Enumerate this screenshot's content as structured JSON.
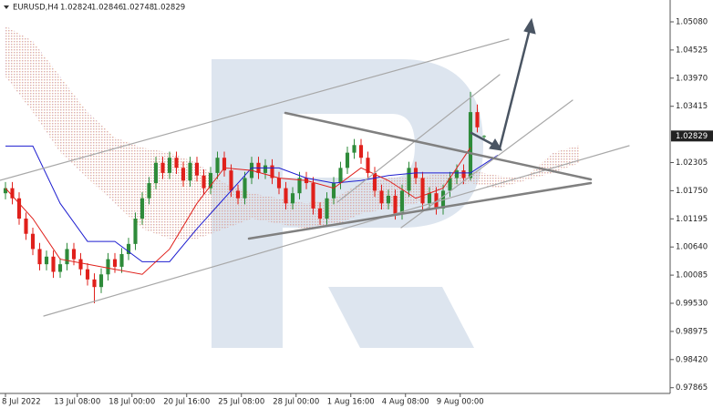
{
  "header": {
    "symbol": "EURUSD,H4"
  },
  "chart_data": {
    "type": "candlestick",
    "up_color": "#2e8b3a",
    "down_color": "#e0201b",
    "x": [
      0,
      2,
      4,
      6,
      8,
      10,
      12,
      14,
      16,
      18,
      20,
      22,
      24,
      26,
      28,
      30,
      32,
      34,
      36,
      38,
      40,
      42,
      44,
      46,
      48,
      50,
      52,
      54,
      56,
      58,
      60,
      62,
      64,
      66,
      68,
      70,
      72,
      74,
      76,
      78,
      80,
      82,
      84,
      86,
      88,
      90,
      92,
      94,
      96,
      98,
      100,
      102,
      104,
      106,
      108,
      110,
      112,
      114,
      116,
      118,
      120,
      122,
      124,
      126,
      128,
      130,
      132,
      134,
      136,
      138,
      140
    ],
    "candles": [
      [
        1.017,
        1.0192,
        1.0158,
        1.018
      ],
      [
        1.018,
        1.0192,
        1.0148,
        1.016
      ],
      [
        1.016,
        1.0172,
        1.0108,
        1.012
      ],
      [
        1.012,
        1.0132,
        1.0078,
        1.009
      ],
      [
        1.009,
        1.0102,
        1.0048,
        1.006
      ],
      [
        1.006,
        1.0072,
        1.0018,
        1.003
      ],
      [
        1.003,
        1.0057,
        1.0018,
        1.0045
      ],
      [
        1.0045,
        1.0057,
        1.0003,
        1.0015
      ],
      [
        1.0015,
        1.0042,
        1.0003,
        1.003
      ],
      [
        1.003,
        1.0072,
        1.0018,
        1.006
      ],
      [
        1.006,
        1.0072,
        1.0028,
        1.004
      ],
      [
        1.004,
        1.0052,
        1.0008,
        1.002
      ],
      [
        1.002,
        1.0032,
        0.9988,
        1.0
      ],
      [
        1.0,
        1.0012,
        0.9953,
        0.9985
      ],
      [
        0.9985,
        1.0022,
        0.9973,
        1.001
      ],
      [
        1.001,
        1.0052,
        0.9998,
        1.004
      ],
      [
        1.004,
        1.0052,
        1.0013,
        1.0025
      ],
      [
        1.0025,
        1.0062,
        1.0013,
        1.005
      ],
      [
        1.005,
        1.0082,
        1.0038,
        1.007
      ],
      [
        1.007,
        1.0132,
        1.0058,
        1.012
      ],
      [
        1.012,
        1.0172,
        1.0108,
        1.016
      ],
      [
        1.016,
        1.0202,
        1.0148,
        1.019
      ],
      [
        1.019,
        1.0242,
        1.0178,
        1.023
      ],
      [
        1.023,
        1.0242,
        1.0198,
        1.021
      ],
      [
        1.021,
        1.0252,
        1.0198,
        1.024
      ],
      [
        1.024,
        1.0252,
        1.0208,
        1.022
      ],
      [
        1.022,
        1.0232,
        1.0183,
        1.0195
      ],
      [
        1.0195,
        1.0242,
        1.0183,
        1.023
      ],
      [
        1.023,
        1.0242,
        1.0193,
        1.0205
      ],
      [
        1.0205,
        1.0217,
        1.0168,
        1.018
      ],
      [
        1.018,
        1.0222,
        1.0168,
        1.021
      ],
      [
        1.021,
        1.0252,
        1.0198,
        1.024
      ],
      [
        1.024,
        1.0252,
        1.0203,
        1.0215
      ],
      [
        1.0215,
        1.0227,
        1.0163,
        1.0175
      ],
      [
        1.0175,
        1.0187,
        1.0148,
        1.016
      ],
      [
        1.016,
        1.0212,
        1.0148,
        1.02
      ],
      [
        1.02,
        1.0242,
        1.0188,
        1.023
      ],
      [
        1.023,
        1.0242,
        1.0198,
        1.021
      ],
      [
        1.021,
        1.0237,
        1.0198,
        1.0225
      ],
      [
        1.0225,
        1.0237,
        1.0188,
        1.02
      ],
      [
        1.02,
        1.0212,
        1.0168,
        1.018
      ],
      [
        1.018,
        1.0192,
        1.0138,
        1.015
      ],
      [
        1.015,
        1.0182,
        1.0138,
        1.017
      ],
      [
        1.017,
        1.0212,
        1.0158,
        1.02
      ],
      [
        1.02,
        1.0212,
        1.0178,
        1.019
      ],
      [
        1.019,
        1.0202,
        1.0128,
        1.014
      ],
      [
        1.014,
        1.0152,
        1.0108,
        1.012
      ],
      [
        1.012,
        1.0172,
        1.0108,
        1.016
      ],
      [
        1.016,
        1.0202,
        1.0148,
        1.019
      ],
      [
        1.019,
        1.0232,
        1.0178,
        1.022
      ],
      [
        1.022,
        1.0262,
        1.0208,
        1.025
      ],
      [
        1.025,
        1.0277,
        1.0238,
        1.0265
      ],
      [
        1.0265,
        1.0277,
        1.0228,
        1.024
      ],
      [
        1.024,
        1.0252,
        1.0198,
        1.021
      ],
      [
        1.021,
        1.0222,
        1.0163,
        1.0175
      ],
      [
        1.0175,
        1.0187,
        1.0138,
        1.015
      ],
      [
        1.015,
        1.0177,
        1.0138,
        1.0165
      ],
      [
        1.0165,
        1.0177,
        1.0118,
        1.013
      ],
      [
        1.013,
        1.0187,
        1.0118,
        1.0175
      ],
      [
        1.0175,
        1.0232,
        1.0163,
        1.022
      ],
      [
        1.022,
        1.0232,
        1.0188,
        1.02
      ],
      [
        1.02,
        1.0212,
        1.0138,
        1.015
      ],
      [
        1.015,
        1.0182,
        1.0138,
        1.017
      ],
      [
        1.017,
        1.0182,
        1.0128,
        1.014
      ],
      [
        1.014,
        1.0187,
        1.0128,
        1.0175
      ],
      [
        1.0175,
        1.0212,
        1.0163,
        1.02
      ],
      [
        1.02,
        1.0227,
        1.0188,
        1.0215
      ],
      [
        1.0215,
        1.0227,
        1.0188,
        1.02
      ],
      [
        1.02,
        1.037,
        1.0195,
        1.033
      ],
      [
        1.033,
        1.0345,
        1.029,
        1.03
      ],
      [
        1.02824,
        1.02846,
        1.02748,
        1.02829
      ]
    ],
    "series": [
      {
        "color": "#1f1fd0",
        "x": [
          0,
          8,
          16,
          24,
          32,
          40,
          48,
          56,
          64,
          72,
          80,
          88,
          96,
          104,
          112,
          120,
          128,
          136,
          144
        ],
        "values": [
          1.0263,
          1.0263,
          1.015,
          1.0075,
          1.0075,
          1.0035,
          1.0035,
          1.01,
          1.016,
          1.022,
          1.022,
          1.02,
          1.019,
          1.0195,
          1.0205,
          1.021,
          1.021,
          1.021,
          1.0245
        ]
      },
      {
        "color": "#e0201b",
        "x": [
          0,
          8,
          16,
          24,
          32,
          40,
          48,
          56,
          64,
          72,
          80,
          88,
          96,
          104,
          112,
          120,
          128,
          136
        ],
        "values": [
          1.018,
          1.012,
          1.004,
          1.003,
          1.002,
          1.001,
          1.006,
          1.015,
          1.022,
          1.0215,
          1.02,
          1.0195,
          1.018,
          1.022,
          1.0195,
          1.016,
          1.018,
          1.026
        ]
      }
    ],
    "cloud": {
      "x": [
        0,
        8,
        16,
        24,
        32,
        40,
        48,
        56,
        64,
        72,
        80,
        88,
        96,
        104,
        112,
        120,
        128,
        136,
        144,
        152,
        160,
        168
      ],
      "upper": [
        1.05,
        1.047,
        1.04,
        1.033,
        1.028,
        1.026,
        1.025,
        1.023,
        1.019,
        1.017,
        1.016,
        1.015,
        1.016,
        1.019,
        1.02,
        1.02,
        1.021,
        1.0215,
        1.0205,
        1.02,
        1.025,
        1.0265
      ],
      "lower": [
        1.04,
        1.033,
        1.025,
        1.02,
        1.015,
        1.01,
        1.008,
        1.008,
        1.01,
        1.012,
        1.011,
        1.01,
        1.0105,
        1.013,
        1.014,
        1.015,
        1.018,
        1.019,
        1.018,
        1.0195,
        1.021,
        1.023
      ]
    },
    "xlim": [
      -1.6,
      194.4
    ],
    "ylim": [
      0.97752,
      1.05511
    ],
    "xticks": [
      {
        "value": 0,
        "label": "8 Jul 2022"
      },
      {
        "value": 21,
        "label": "13 Jul 08:00"
      },
      {
        "value": 37,
        "label": "18 Jul 00:00"
      },
      {
        "value": 53,
        "label": "20 Jul 16:00"
      },
      {
        "value": 69,
        "label": "25 Jul 08:00"
      },
      {
        "value": 85,
        "label": "28 Jul 00:00"
      },
      {
        "value": 101,
        "label": "1 Aug 16:00"
      },
      {
        "value": 117,
        "label": "4 Aug 08:00"
      },
      {
        "value": 133,
        "label": "9 Aug 00:00"
      }
    ],
    "yticks": [
      {
        "value": 1.0508,
        "label": "1.05080"
      },
      1.04525,
      {
        "value": 1.0397,
        "label": "1.03970"
      },
      1.03415,
      1.02305,
      {
        "value": 1.0175,
        "label": "1.01750"
      },
      1.01195,
      {
        "value": 1.0064,
        "label": "1.00640"
      },
      1.00085,
      {
        "value": 0.9953,
        "label": "0.99530"
      },
      0.98975,
      {
        "value": 0.9842,
        "label": "0.98420"
      },
      0.97865
    ]
  }
}
